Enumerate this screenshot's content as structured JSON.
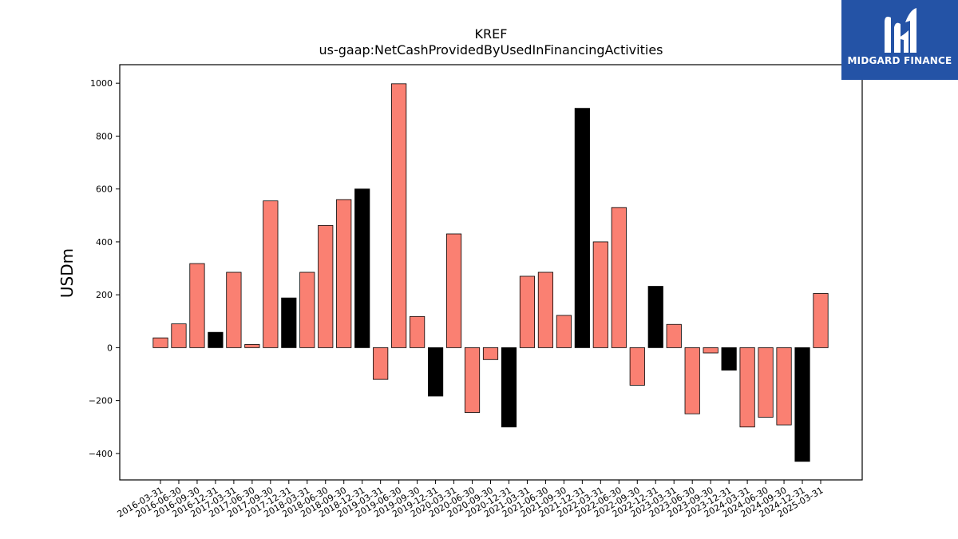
{
  "chart_data": {
    "type": "bar",
    "title": "KREF",
    "subtitle": "us-gaap:NetCashProvidedByUsedInFinancingActivities",
    "ylabel": "USDm",
    "xlabel": "",
    "ylim": [
      -500,
      1070
    ],
    "yticks": [
      -400,
      -200,
      0,
      200,
      400,
      600,
      800,
      1000
    ],
    "ytick_labels": [
      "−400",
      "−200",
      "0",
      "200",
      "400",
      "600",
      "800",
      "1000"
    ],
    "grid": false,
    "colors": {
      "quarter": "#fa8072",
      "year_end": "#000000",
      "edge": "#000000"
    },
    "categories": [
      "2016-03-31",
      "2016-06-30",
      "2016-09-30",
      "2016-12-31",
      "2017-03-31",
      "2017-06-30",
      "2017-09-30",
      "2017-12-31",
      "2018-03-31",
      "2018-06-30",
      "2018-09-30",
      "2018-12-31",
      "2019-03-31",
      "2019-06-30",
      "2019-09-30",
      "2019-12-31",
      "2020-03-31",
      "2020-06-30",
      "2020-09-30",
      "2020-12-31",
      "2021-03-31",
      "2021-06-30",
      "2021-09-30",
      "2021-12-31",
      "2022-03-31",
      "2022-06-30",
      "2022-09-30",
      "2022-12-31",
      "2023-03-31",
      "2023-06-30",
      "2023-09-30",
      "2023-12-31",
      "2024-03-31",
      "2024-06-30",
      "2024-09-30",
      "2024-12-31",
      "2025-03-31"
    ],
    "values": [
      37,
      90,
      318,
      58,
      285,
      12,
      555,
      188,
      285,
      462,
      560,
      600,
      -120,
      998,
      118,
      -183,
      430,
      -245,
      -45,
      -300,
      270,
      285,
      122,
      905,
      400,
      530,
      -142,
      232,
      88,
      -250,
      -20,
      -85,
      -300,
      -263,
      -292,
      -430,
      205
    ]
  },
  "logo": {
    "text": "MIDGARD FINANCE",
    "icon": "midgard-logo-icon"
  }
}
